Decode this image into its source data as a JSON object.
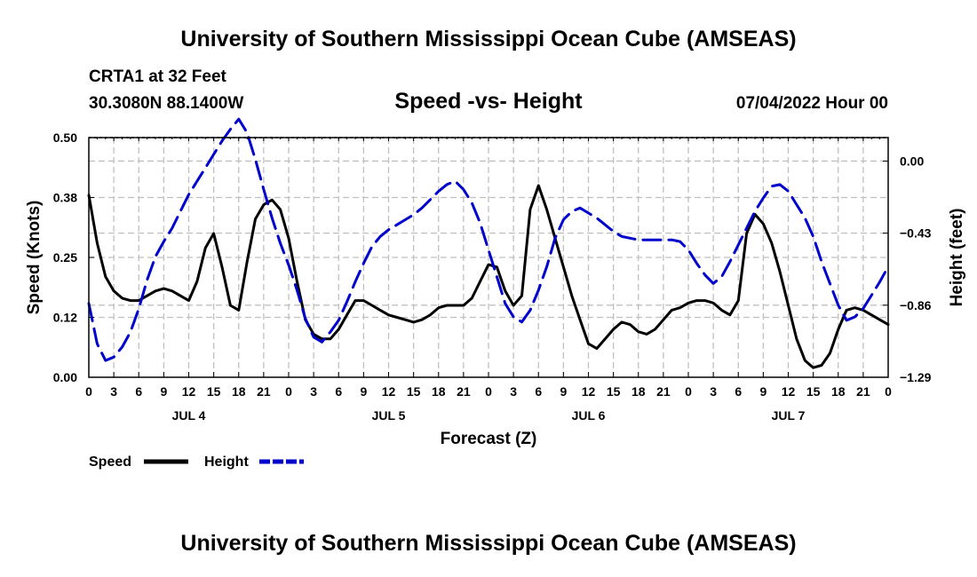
{
  "header": {
    "title": "University of Southern Mississippi Ocean Cube (AMSEAS)",
    "station": "CRTA1 at 32 Feet",
    "coords": "30.3080N  88.1400W",
    "subtitle": "Speed -vs- Height",
    "datestamp": "07/04/2022 Hour 00"
  },
  "footer": {
    "title": "University of Southern Mississippi Ocean Cube (AMSEAS)"
  },
  "colors": {
    "speed": "#000000",
    "height": "#0000cc",
    "grid": "#c0c0c0"
  },
  "chart_data": {
    "type": "line",
    "title": "Speed -vs- Height",
    "xlabel": "Forecast (Z)",
    "ylabel": "Speed (Knots)",
    "y2label": "Height (feet)",
    "xlim": [
      0,
      96
    ],
    "ylim": [
      0,
      0.5
    ],
    "y2lim": [
      -1.29,
      0.14
    ],
    "grid": true,
    "legend_position": "bottom-left",
    "x_tick_labels": [
      "0",
      "3",
      "6",
      "9",
      "12",
      "15",
      "18",
      "21",
      "0",
      "3",
      "6",
      "9",
      "12",
      "15",
      "18",
      "21",
      "0",
      "3",
      "6",
      "9",
      "12",
      "15",
      "18",
      "21",
      "0",
      "3",
      "6",
      "9",
      "12",
      "15",
      "18",
      "21",
      "0"
    ],
    "day_labels": [
      {
        "hour": 12,
        "label": "JUL 4"
      },
      {
        "hour": 36,
        "label": "JUL 5"
      },
      {
        "hour": 60,
        "label": "JUL 6"
      },
      {
        "hour": 84,
        "label": "JUL 7"
      }
    ],
    "y_ticks": [
      {
        "value": 0,
        "label": "0.00"
      },
      {
        "value": 0.125,
        "label": "0.12"
      },
      {
        "value": 0.25,
        "label": "0.25"
      },
      {
        "value": 0.375,
        "label": "0.38"
      },
      {
        "value": 0.5,
        "label": "0.50"
      }
    ],
    "y2_ticks": [
      {
        "value": 0,
        "label": "0.00"
      },
      {
        "value": -0.43,
        "label": "−0.43"
      },
      {
        "value": -0.86,
        "label": "−0.86"
      },
      {
        "value": -1.29,
        "label": "−1.29"
      }
    ],
    "series": [
      {
        "name": "Speed",
        "axis": "left",
        "style": "solid",
        "x": [
          0,
          1,
          2,
          3,
          4,
          5,
          6,
          7,
          8,
          9,
          10,
          11,
          12,
          13,
          14,
          15,
          16,
          17,
          18,
          19,
          20,
          21,
          22,
          23,
          24,
          25,
          26,
          27,
          28,
          29,
          30,
          31,
          32,
          33,
          34,
          35,
          36,
          37,
          38,
          39,
          40,
          41,
          42,
          43,
          44,
          45,
          46,
          47,
          48,
          49,
          50,
          51,
          52,
          53,
          54,
          55,
          56,
          57,
          58,
          59,
          60,
          61,
          62,
          63,
          64,
          65,
          66,
          67,
          68,
          69,
          70,
          71,
          72,
          73,
          74,
          75,
          76,
          77,
          78,
          79,
          80,
          81,
          82,
          83,
          84,
          85,
          86,
          87,
          88,
          89,
          90,
          91,
          92,
          93,
          94,
          95,
          96
        ],
        "values": [
          0.38,
          0.28,
          0.21,
          0.18,
          0.165,
          0.16,
          0.16,
          0.17,
          0.18,
          0.185,
          0.18,
          0.17,
          0.16,
          0.2,
          0.27,
          0.3,
          0.23,
          0.15,
          0.14,
          0.24,
          0.33,
          0.36,
          0.37,
          0.35,
          0.29,
          0.2,
          0.12,
          0.09,
          0.08,
          0.08,
          0.1,
          0.13,
          0.16,
          0.16,
          0.15,
          0.14,
          0.13,
          0.125,
          0.12,
          0.115,
          0.12,
          0.13,
          0.145,
          0.15,
          0.15,
          0.15,
          0.165,
          0.2,
          0.235,
          0.23,
          0.18,
          0.15,
          0.17,
          0.35,
          0.4,
          0.35,
          0.29,
          0.23,
          0.17,
          0.12,
          0.07,
          0.06,
          0.08,
          0.1,
          0.115,
          0.11,
          0.095,
          0.09,
          0.1,
          0.12,
          0.14,
          0.145,
          0.155,
          0.16,
          0.16,
          0.155,
          0.14,
          0.13,
          0.16,
          0.3,
          0.34,
          0.32,
          0.28,
          0.22,
          0.15,
          0.08,
          0.035,
          0.02,
          0.025,
          0.05,
          0.1,
          0.14,
          0.145,
          0.14,
          0.13,
          0.12,
          0.11
        ]
      },
      {
        "name": "Height",
        "axis": "right",
        "style": "dashed",
        "x": [
          0,
          1,
          2,
          3,
          4,
          5,
          6,
          7,
          8,
          9,
          10,
          11,
          12,
          13,
          14,
          15,
          16,
          17,
          18,
          19,
          20,
          21,
          22,
          23,
          24,
          25,
          26,
          27,
          28,
          29,
          30,
          31,
          32,
          33,
          34,
          35,
          36,
          37,
          38,
          39,
          40,
          41,
          42,
          43,
          44,
          45,
          46,
          47,
          48,
          49,
          50,
          51,
          52,
          53,
          54,
          55,
          56,
          57,
          58,
          59,
          60,
          61,
          62,
          63,
          64,
          65,
          66,
          67,
          68,
          69,
          70,
          71,
          72,
          73,
          74,
          75,
          76,
          77,
          78,
          79,
          80,
          81,
          82,
          83,
          84,
          85,
          86,
          87,
          88,
          89,
          90,
          91,
          92,
          93,
          94,
          95,
          96
        ],
        "values": [
          -0.85,
          -1.09,
          -1.19,
          -1.17,
          -1.11,
          -1.02,
          -0.88,
          -0.71,
          -0.57,
          -0.48,
          -0.4,
          -0.3,
          -0.2,
          -0.12,
          -0.04,
          0.04,
          0.12,
          0.19,
          0.25,
          0.17,
          0.01,
          -0.17,
          -0.34,
          -0.49,
          -0.62,
          -0.77,
          -0.94,
          -1.05,
          -1.08,
          -1.02,
          -0.95,
          -0.84,
          -0.72,
          -0.61,
          -0.51,
          -0.45,
          -0.41,
          -0.38,
          -0.35,
          -0.32,
          -0.28,
          -0.23,
          -0.18,
          -0.14,
          -0.12,
          -0.17,
          -0.25,
          -0.37,
          -0.53,
          -0.69,
          -0.85,
          -0.93,
          -0.96,
          -0.89,
          -0.77,
          -0.63,
          -0.46,
          -0.35,
          -0.3,
          -0.28,
          -0.31,
          -0.34,
          -0.38,
          -0.42,
          -0.45,
          -0.46,
          -0.47,
          -0.47,
          -0.47,
          -0.47,
          -0.47,
          -0.48,
          -0.53,
          -0.61,
          -0.68,
          -0.73,
          -0.69,
          -0.6,
          -0.5,
          -0.4,
          -0.3,
          -0.22,
          -0.15,
          -0.14,
          -0.18,
          -0.26,
          -0.34,
          -0.45,
          -0.6,
          -0.73,
          -0.86,
          -0.95,
          -0.93,
          -0.88,
          -0.8,
          -0.72,
          -0.63
        ]
      }
    ]
  }
}
